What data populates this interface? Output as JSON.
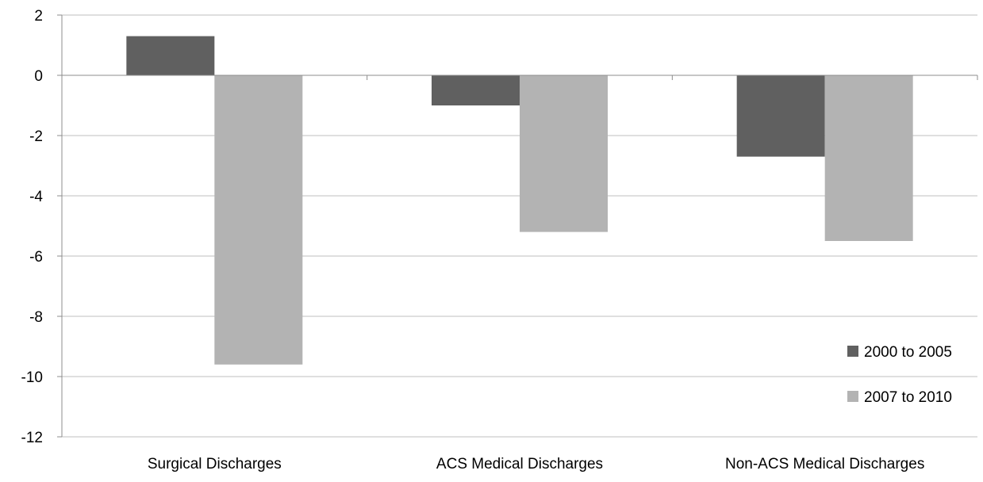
{
  "chart_data": {
    "type": "bar",
    "categories": [
      "Surgical Discharges",
      "ACS Medical Discharges",
      "Non-ACS Medical Discharges"
    ],
    "series": [
      {
        "name": "2000 to 2005",
        "color": "#606060",
        "values": [
          1.3,
          -1.0,
          -2.7
        ]
      },
      {
        "name": "2007 to 2010",
        "color": "#b3b3b3",
        "values": [
          -9.6,
          -5.2,
          -5.5
        ]
      }
    ],
    "title": "",
    "xlabel": "",
    "ylabel": "",
    "ylim": [
      -12,
      2
    ],
    "yticks": [
      2,
      0,
      -2,
      -4,
      -6,
      -8,
      -10,
      -12
    ],
    "grid": true,
    "gridColor": "#bfbfbf",
    "axisColor": "#8c8c8c",
    "legend": "bottom-right"
  }
}
